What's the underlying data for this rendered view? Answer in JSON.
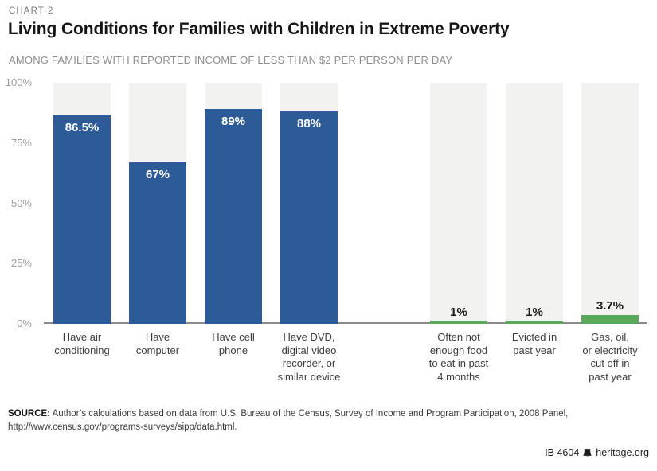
{
  "header": {
    "kicker": "CHART 2",
    "title": "Living Conditions for Families with Children in Extreme Poverty",
    "subtitle": "AMONG FAMILIES WITH REPORTED INCOME OF LESS THAN $2 PER PERSON PER DAY"
  },
  "chart_data": {
    "type": "bar",
    "title": "Living Conditions for Families with Children in Extreme Poverty",
    "subtitle": "AMONG FAMILIES WITH REPORTED INCOME OF LESS THAN $2 PER PERSON PER DAY",
    "xlabel": "",
    "ylabel": "",
    "ylim": [
      0,
      100
    ],
    "grid": false,
    "legend_position": "none",
    "track_background_color": "#f2f2f0",
    "axis_line_color": "#8b8b8b",
    "tick_label_color": "#9b9b9b",
    "series_colors": {
      "have": "#2d5b97",
      "hardship": "#5aa85c"
    },
    "yticks": [
      {
        "value": 0,
        "label": "0%"
      },
      {
        "value": 25,
        "label": "25%"
      },
      {
        "value": 50,
        "label": "50%"
      },
      {
        "value": 75,
        "label": "75%"
      },
      {
        "value": 100,
        "label": "100%"
      }
    ],
    "categories": [
      "Have air conditioning",
      "Have computer",
      "Have cell phone",
      "Have DVD, digital video recorder, or similar device",
      "Often not enough food to eat in past 4 months",
      "Evicted in past year",
      "Gas, oil, or electricity cut off in past year"
    ],
    "values": [
      86.5,
      67,
      89,
      88,
      1,
      1,
      3.7
    ],
    "group_gap_before_index": 4,
    "bars": [
      {
        "value": 86.5,
        "value_label": "86.5%",
        "series": "have",
        "value_label_position": "inside",
        "category_lines": [
          "Have air",
          "conditioning"
        ]
      },
      {
        "value": 67,
        "value_label": "67%",
        "series": "have",
        "value_label_position": "inside",
        "category_lines": [
          "Have",
          "computer"
        ]
      },
      {
        "value": 89,
        "value_label": "89%",
        "series": "have",
        "value_label_position": "inside",
        "category_lines": [
          "Have cell",
          "phone"
        ]
      },
      {
        "value": 88,
        "value_label": "88%",
        "series": "have",
        "value_label_position": "inside",
        "category_lines": [
          "Have DVD,",
          "digital video",
          "recorder, or",
          "similar device"
        ]
      },
      {
        "value": 1,
        "value_label": "1%",
        "series": "hardship",
        "value_label_position": "above",
        "category_lines": [
          "Often not",
          "enough food",
          "to eat in past",
          "4 months"
        ]
      },
      {
        "value": 1,
        "value_label": "1%",
        "series": "hardship",
        "value_label_position": "above",
        "category_lines": [
          "Evicted in",
          "past year"
        ]
      },
      {
        "value": 3.7,
        "value_label": "3.7%",
        "series": "hardship",
        "value_label_position": "above",
        "category_lines": [
          "Gas, oil,",
          "or electricity",
          "cut off in",
          "past year"
        ]
      }
    ]
  },
  "footer": {
    "source_label": "SOURCE:",
    "source_text": "Author’s calculations based on data from U.S. Bureau of the Census, Survey of Income and Program Participation, 2008 Panel, http://www.census.gov/programs-surveys/sipp/data.html.",
    "report_id": "IB 4604",
    "site": "heritage.org"
  }
}
